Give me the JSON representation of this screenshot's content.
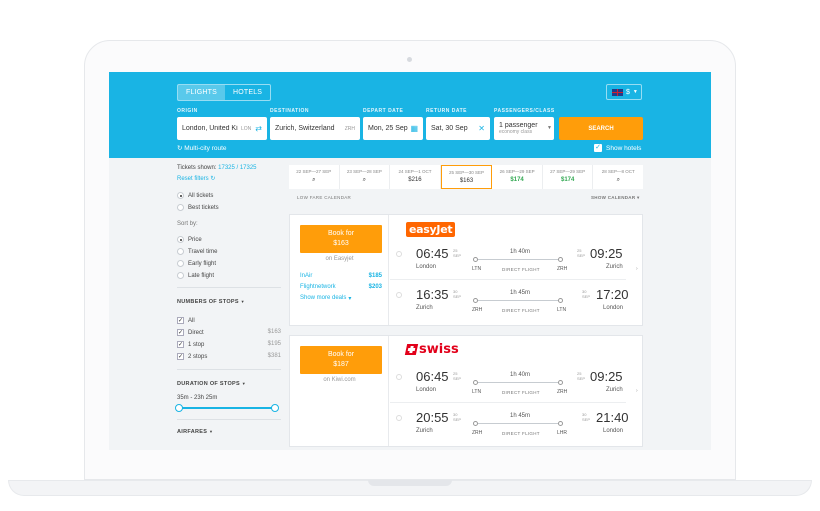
{
  "header": {
    "tabs": [
      {
        "label": "FLIGHTS",
        "active": true
      },
      {
        "label": "HOTELS",
        "active": false
      }
    ],
    "currency": "$",
    "labels": {
      "origin": "ORIGIN",
      "destination": "DESTINATION",
      "depart": "DEPART DATE",
      "return": "RETURN DATE",
      "passengers": "PASSENGERS/CLASS"
    },
    "origin": {
      "value": "London, United Ki",
      "code": "LON"
    },
    "destination": {
      "value": "Zurich, Switzerland",
      "code": "ZRH"
    },
    "depart_date": "Mon, 25 Sep",
    "return_date": "Sat, 30 Sep",
    "passengers": {
      "count": "1 passenger",
      "class": "economy class"
    },
    "search_label": "SEARCH",
    "multi_city": "Multi-city route",
    "show_hotels": "Show hotels"
  },
  "sidebar": {
    "tickets_shown_label": "Tickets shown:",
    "tickets_shown_value": "17325 / 17325",
    "reset_filters": "Reset filters",
    "ticket_types": [
      {
        "label": "All tickets",
        "selected": true
      },
      {
        "label": "Best tickets",
        "selected": false
      }
    ],
    "sort_by_label": "Sort by:",
    "sort_options": [
      {
        "label": "Price",
        "selected": true
      },
      {
        "label": "Travel time",
        "selected": false
      },
      {
        "label": "Early flight",
        "selected": false
      },
      {
        "label": "Late flight",
        "selected": false
      }
    ],
    "stops_title": "NUMBERS OF STOPS",
    "stops": [
      {
        "label": "All",
        "price": "",
        "checked": true
      },
      {
        "label": "Direct",
        "price": "$163",
        "checked": true
      },
      {
        "label": "1 stop",
        "price": "$195",
        "checked": true
      },
      {
        "label": "2 stops",
        "price": "$381",
        "checked": true
      }
    ],
    "duration_title": "DURATION OF STOPS",
    "duration_range": "35m - 23h 25m",
    "airfares_title": "AIRFARES"
  },
  "calendar": {
    "cells": [
      {
        "dates": "22 SEP—27 SEP",
        "price": "",
        "icon": "search-icon",
        "selected": false,
        "green": false
      },
      {
        "dates": "23 SEP—28 SEP",
        "price": "",
        "icon": "search-icon",
        "selected": false,
        "green": false
      },
      {
        "dates": "24 SEP—1 OCT",
        "price": "$216",
        "selected": false,
        "green": false
      },
      {
        "dates": "25 SEP—30 SEP",
        "price": "$163",
        "selected": true,
        "green": false
      },
      {
        "dates": "26 SEP—29 SEP",
        "price": "$174",
        "selected": false,
        "green": true
      },
      {
        "dates": "27 SEP—29 SEP",
        "price": "$174",
        "selected": false,
        "green": true
      },
      {
        "dates": "28 SEP—8 OCT",
        "price": "",
        "icon": "search-icon",
        "selected": false,
        "green": false
      }
    ],
    "low_fare_label": "LOW FARE CALENDAR",
    "show_calendar": "SHOW CALENDAR"
  },
  "results": [
    {
      "book_line1": "Book for",
      "book_price": "$163",
      "source": "on Easyjet",
      "airline": "easyJet",
      "alternatives": [
        {
          "name": "InAir",
          "price": "$185"
        },
        {
          "name": "Flightnetwork",
          "price": "$203"
        }
      ],
      "more_deals": "Show more deals",
      "segments": [
        {
          "dep_time": "06:45",
          "dep_day": "25",
          "dep_month": "SEP",
          "dep_city": "London",
          "dep_code": "LTN",
          "duration": "1h 40m",
          "direct": "DIRECT FLIGHT",
          "arr_code": "ZRH",
          "arr_day": "25",
          "arr_month": "SEP",
          "arr_time": "09:25",
          "arr_city": "Zurich"
        },
        {
          "dep_time": "16:35",
          "dep_day": "30",
          "dep_month": "SEP",
          "dep_city": "Zurich",
          "dep_code": "ZRH",
          "duration": "1h 45m",
          "direct": "DIRECT FLIGHT",
          "arr_code": "LTN",
          "arr_day": "30",
          "arr_month": "SEP",
          "arr_time": "17:20",
          "arr_city": "London"
        }
      ]
    },
    {
      "book_line1": "Book for",
      "book_price": "$187",
      "source": "on Kiwi.com",
      "airline": "swiss",
      "segments": [
        {
          "dep_time": "06:45",
          "dep_day": "25",
          "dep_month": "SEP",
          "dep_city": "London",
          "dep_code": "LTN",
          "duration": "1h 40m",
          "direct": "DIRECT FLIGHT",
          "arr_code": "ZRH",
          "arr_day": "25",
          "arr_month": "SEP",
          "arr_time": "09:25",
          "arr_city": "Zurich"
        },
        {
          "dep_time": "20:55",
          "dep_day": "30",
          "dep_month": "SEP",
          "dep_city": "Zurich",
          "dep_code": "ZRH",
          "duration": "1h 45m",
          "direct": "DIRECT FLIGHT",
          "arr_code": "LHR",
          "arr_day": "30",
          "arr_month": "SEP",
          "arr_time": "21:40",
          "arr_city": "London"
        }
      ]
    }
  ],
  "colors": {
    "accent": "#19b4e4",
    "cta": "#ff9d0a",
    "easyjet": "#ff6600",
    "swiss": "#e2001a",
    "cheap": "#32a852"
  }
}
